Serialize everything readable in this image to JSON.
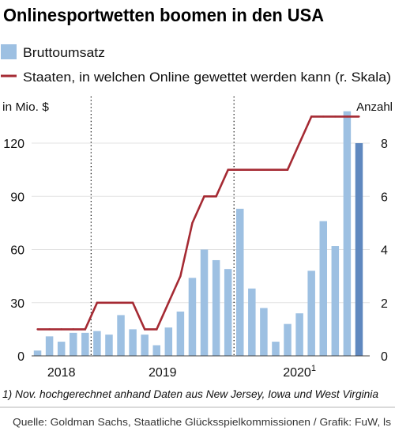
{
  "chart_data": {
    "type": "bar",
    "title": "Onlinesportwetten boomen in den USA",
    "ylabel": "in Mio. $",
    "y2label": "Anzahl",
    "ylim": [
      0,
      145
    ],
    "y2lim": [
      0,
      9.667
    ],
    "yticks": [
      0,
      30,
      60,
      90,
      120
    ],
    "y2ticks": [
      0,
      2,
      4,
      6,
      8
    ],
    "grid": true,
    "year_separators": true,
    "legend": "top-left",
    "x_groups": [
      {
        "label": "2018",
        "sup": ""
      },
      {
        "label": "2019",
        "sup": ""
      },
      {
        "label": "2020",
        "sup": "1"
      }
    ],
    "series": [
      {
        "name": "Bruttoumsatz",
        "type": "bar",
        "axis": "left",
        "color": "#9dc0e2",
        "last_value_projected": true,
        "projected_color": "#5f88bf",
        "values_by_year": [
          [
            3,
            11,
            8,
            13,
            13
          ],
          [
            14,
            12,
            23,
            15,
            12,
            6,
            16,
            25,
            44,
            60,
            54,
            49
          ],
          [
            83,
            38,
            27,
            8,
            18,
            24,
            48,
            76,
            62,
            138,
            120
          ]
        ]
      },
      {
        "name": "Staaten, in welchen Online gewettet werden kann (r. Skala)",
        "type": "line",
        "axis": "right",
        "color": "#a52a33",
        "values_by_year": [
          [
            1,
            1,
            1,
            1,
            1
          ],
          [
            2,
            2,
            2,
            2,
            1,
            1,
            2,
            3,
            5,
            6,
            6,
            7
          ],
          [
            7,
            7,
            7,
            7,
            7,
            8,
            9,
            9,
            9,
            9,
            9
          ]
        ]
      }
    ],
    "footnote": "1) Nov. hochgerechnet anhand Daten aus New Jersey, Iowa und West Virginia",
    "source": "Quelle: Goldman Sachs, Staatliche Glücksspielkommissionen / Grafik: FuW, ls"
  }
}
